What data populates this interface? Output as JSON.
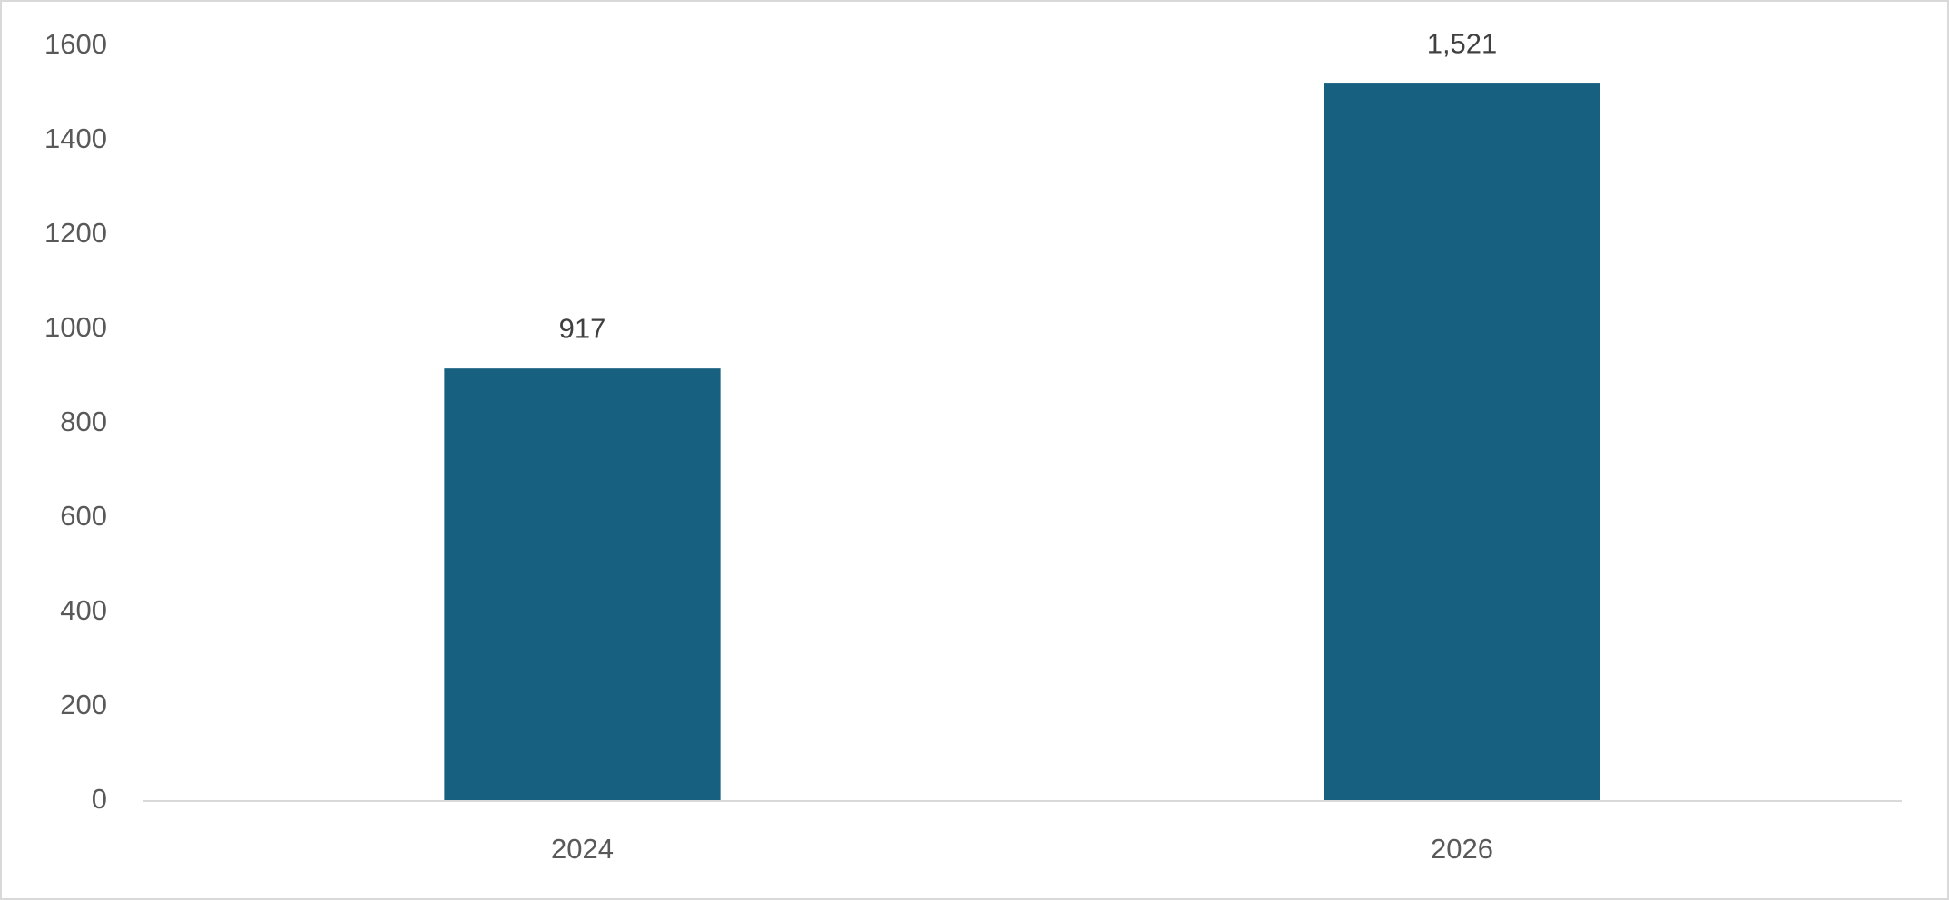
{
  "chart_data": {
    "type": "bar",
    "categories": [
      "2024",
      "2026"
    ],
    "values": [
      917,
      1521
    ],
    "value_labels": [
      "917",
      "1,521"
    ],
    "color": "#17607f",
    "ylim": [
      0,
      1600
    ],
    "yticks": [
      0,
      200,
      400,
      600,
      800,
      1000,
      1200,
      1400,
      1600
    ],
    "grid": false
  }
}
